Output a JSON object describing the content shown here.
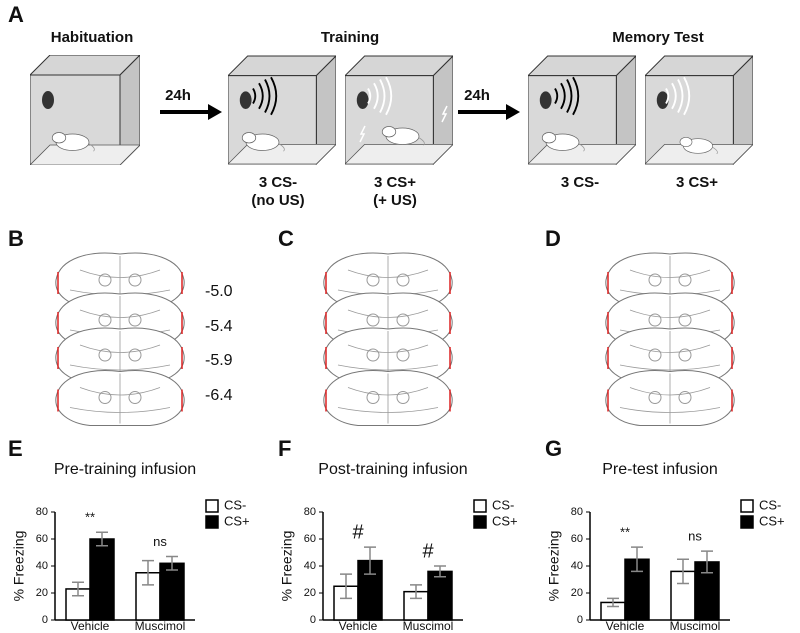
{
  "panel_labels": [
    "A",
    "B",
    "C",
    "D",
    "E",
    "F",
    "G"
  ],
  "protocol": {
    "stages": [
      "Habituation",
      "Training",
      "Memory Test"
    ],
    "intervals": [
      "24h",
      "24h"
    ],
    "conditions": [
      [
        "3 CS-",
        "(no US)"
      ],
      [
        "3 CS+",
        "(+ US)"
      ],
      [
        "3 CS-"
      ],
      [
        "3 CS+"
      ]
    ]
  },
  "coordinates": [
    "-5.0",
    "-5.4",
    "-5.9",
    "-6.4"
  ],
  "chart_data": [
    {
      "type": "bar",
      "title": "Pre-training infusion",
      "y_label": "% Freezing",
      "categories": [
        "Vehicle",
        "Muscimol"
      ],
      "series": [
        {
          "name": "CS-",
          "color": "#ffffff",
          "values": [
            23,
            35
          ],
          "errors": [
            5,
            9
          ]
        },
        {
          "name": "CS+",
          "color": "#000000",
          "values": [
            60,
            42
          ],
          "errors": [
            5,
            5
          ]
        }
      ],
      "annotations": [
        "**",
        "ns"
      ],
      "ylim": [
        0,
        80
      ],
      "yticks": [
        0,
        20,
        40,
        60,
        80
      ]
    },
    {
      "type": "bar",
      "title": "Post-training infusion",
      "y_label": "% Freezing",
      "categories": [
        "Vehicle",
        "Muscimol"
      ],
      "series": [
        {
          "name": "CS-",
          "color": "#ffffff",
          "values": [
            25,
            21
          ],
          "errors": [
            9,
            5
          ]
        },
        {
          "name": "CS+",
          "color": "#000000",
          "values": [
            44,
            36
          ],
          "errors": [
            10,
            4
          ]
        }
      ],
      "annotations": [
        "#",
        "#"
      ],
      "ylim": [
        0,
        80
      ],
      "yticks": [
        0,
        20,
        40,
        60,
        80
      ]
    },
    {
      "type": "bar",
      "title": "Pre-test infusion",
      "y_label": "% Freezing",
      "categories": [
        "Vehicle",
        "Muscimol"
      ],
      "series": [
        {
          "name": "CS-",
          "color": "#ffffff",
          "values": [
            13,
            36
          ],
          "errors": [
            3,
            9
          ]
        },
        {
          "name": "CS+",
          "color": "#000000",
          "values": [
            45,
            43
          ],
          "errors": [
            9,
            8
          ]
        }
      ],
      "annotations": [
        "**",
        "ns"
      ],
      "ylim": [
        0,
        80
      ],
      "yticks": [
        0,
        20,
        40,
        60,
        80
      ]
    }
  ]
}
